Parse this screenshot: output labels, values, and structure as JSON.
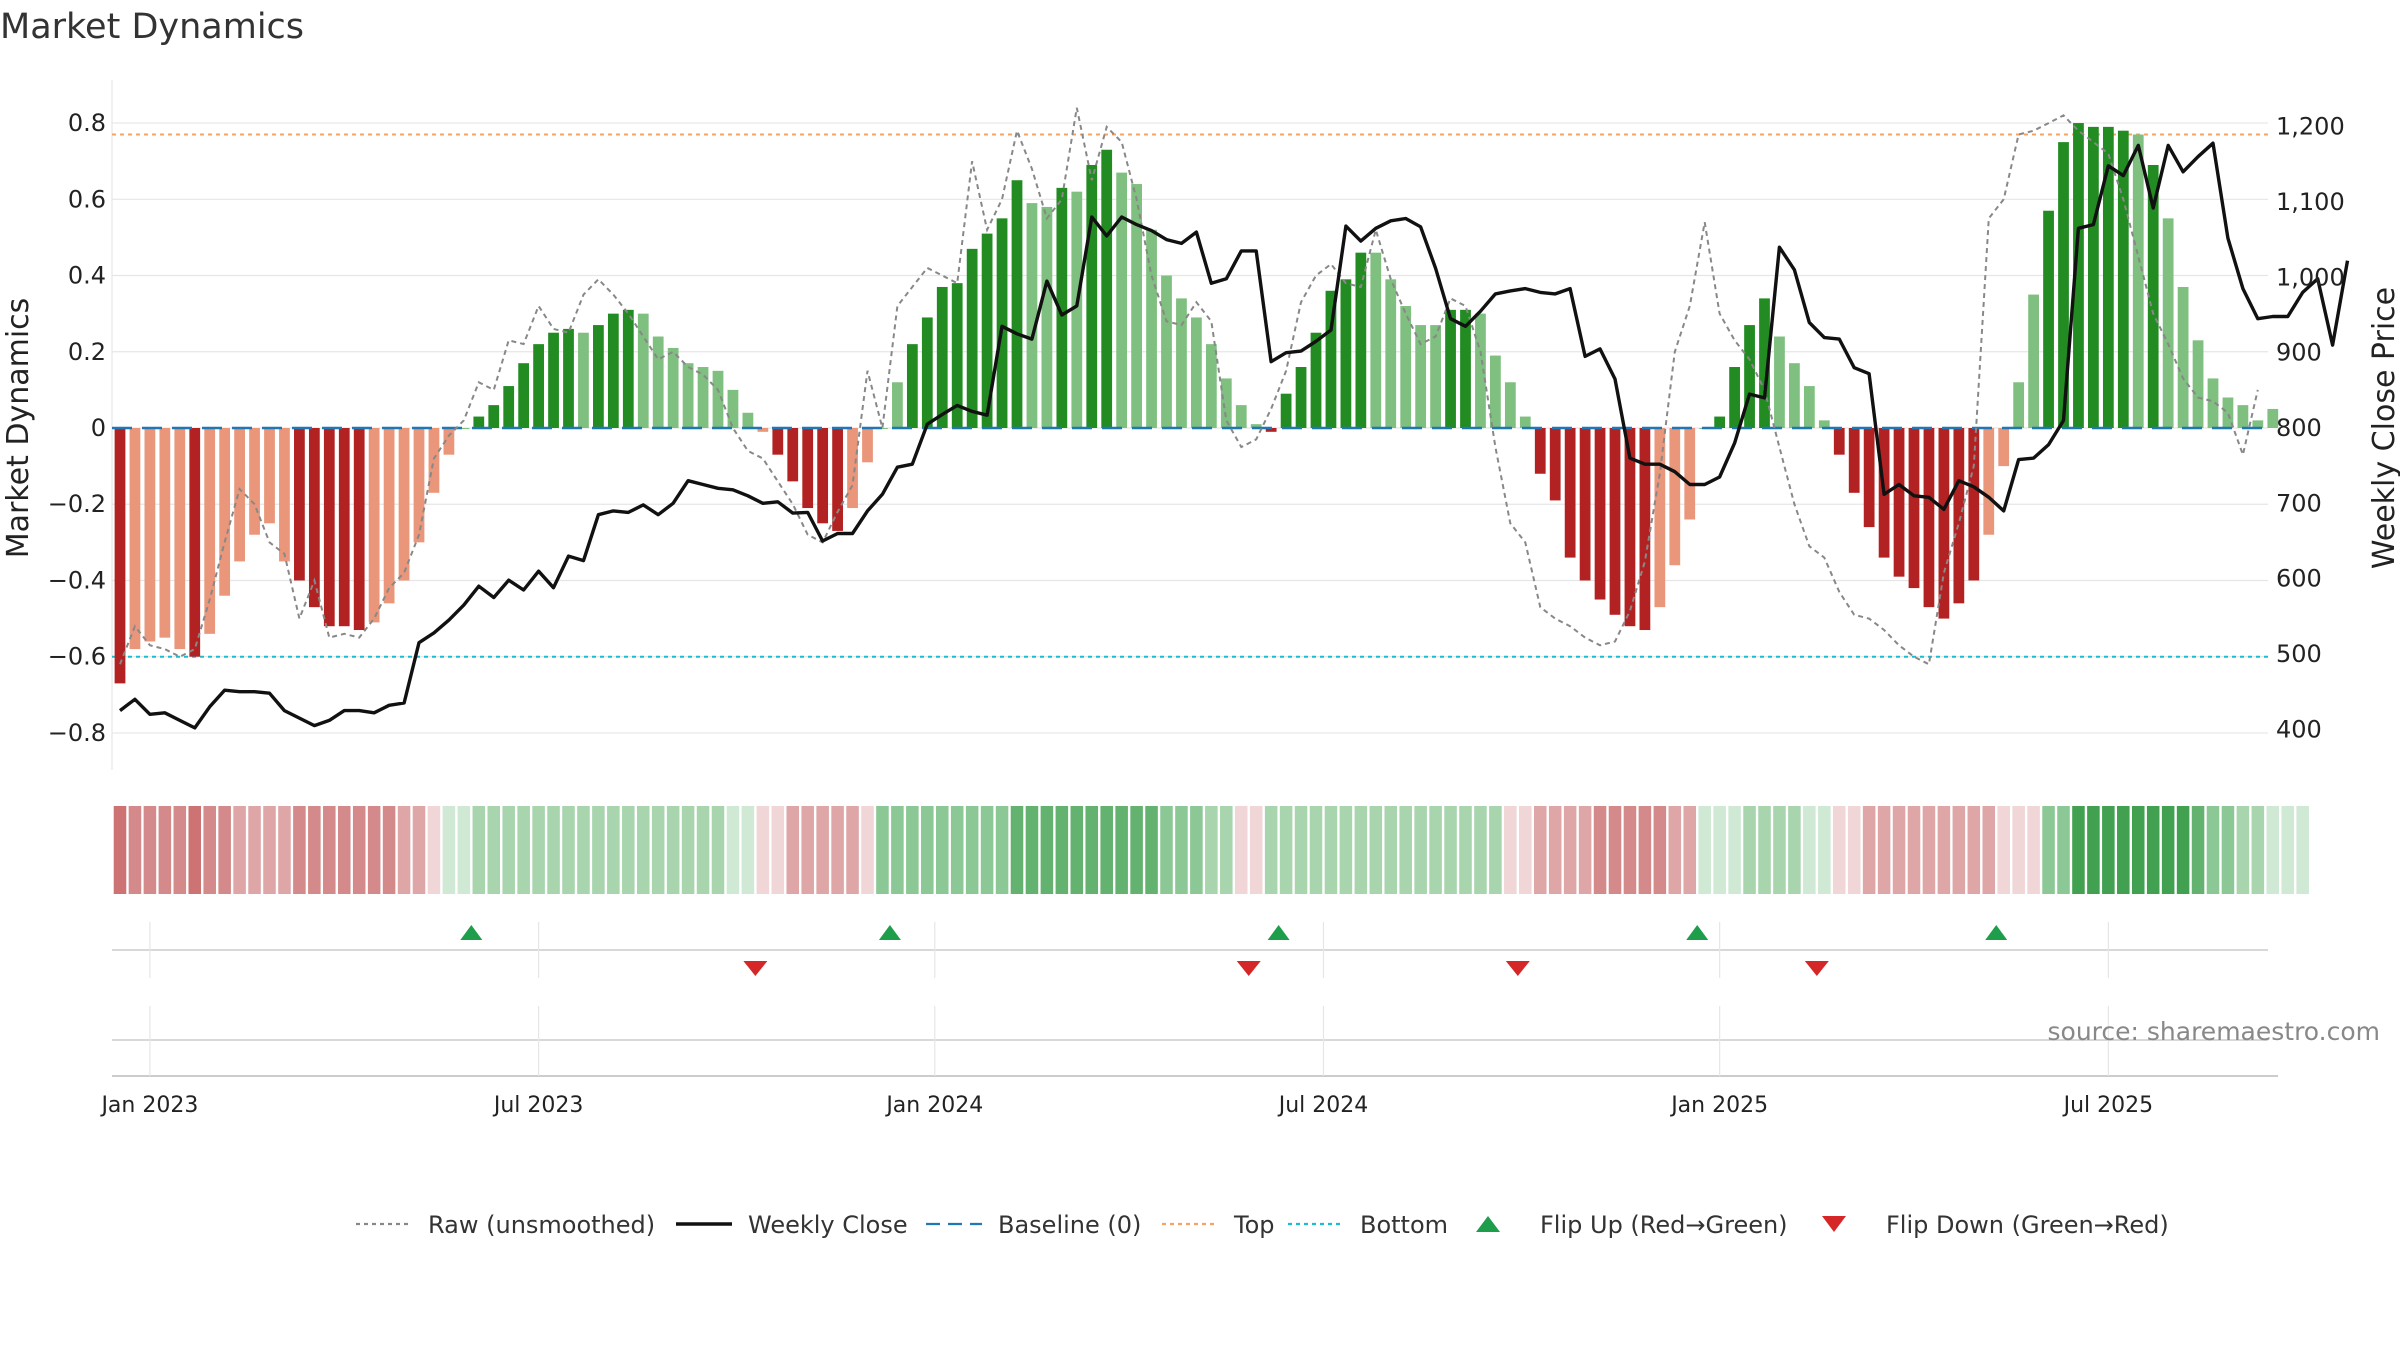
{
  "chart_data": {
    "type": "bar",
    "title": "Market Dynamics",
    "ylabel_left": "Market Dynamics",
    "ylabel_right": "Weekly Close Price",
    "source": "source: sharemaestro.com",
    "ylim_left": [
      -0.85,
      0.85
    ],
    "ylim_right": [
      370,
      1230
    ],
    "y_ticks_left": [
      "0.8",
      "0.6",
      "0.4",
      "0.2",
      "0",
      "−0.2",
      "−0.4",
      "−0.6",
      "−0.8"
    ],
    "y_ticks_left_values": [
      0.8,
      0.6,
      0.4,
      0.2,
      0,
      -0.2,
      -0.4,
      -0.6,
      -0.8
    ],
    "y_ticks_right": [
      "1,200",
      "1,100",
      "1,000",
      "900",
      "800",
      "700",
      "600",
      "500",
      "400"
    ],
    "y_ticks_right_values": [
      1200,
      1100,
      1000,
      900,
      800,
      700,
      600,
      500,
      400
    ],
    "top_line": 0.77,
    "bottom_line": -0.6,
    "baseline": 0,
    "date_ticks": [
      {
        "label": "Jan 2023",
        "week": 2
      },
      {
        "label": "Jul 2023",
        "week": 28
      },
      {
        "label": "Jan 2024",
        "week": 54.5
      },
      {
        "label": "Jul 2024",
        "week": 80.5
      },
      {
        "label": "Jan 2025",
        "week": 107
      },
      {
        "label": "Jul 2025",
        "week": 133
      }
    ],
    "weeks": 145,
    "bars": [
      -0.67,
      -0.58,
      -0.56,
      -0.55,
      -0.58,
      -0.6,
      -0.54,
      -0.44,
      -0.35,
      -0.28,
      -0.25,
      -0.35,
      -0.4,
      -0.47,
      -0.52,
      -0.52,
      -0.53,
      -0.51,
      -0.46,
      -0.4,
      -0.3,
      -0.17,
      -0.07,
      0.0,
      0.03,
      0.06,
      0.11,
      0.17,
      0.22,
      0.25,
      0.26,
      0.25,
      0.27,
      0.3,
      0.31,
      0.3,
      0.24,
      0.21,
      0.17,
      0.16,
      0.15,
      0.1,
      0.04,
      -0.01,
      -0.07,
      -0.14,
      -0.21,
      -0.25,
      -0.27,
      -0.21,
      -0.09,
      0.0,
      0.12,
      0.22,
      0.29,
      0.37,
      0.38,
      0.47,
      0.51,
      0.55,
      0.65,
      0.59,
      0.58,
      0.63,
      0.62,
      0.69,
      0.73,
      0.67,
      0.64,
      0.52,
      0.4,
      0.34,
      0.29,
      0.22,
      0.13,
      0.06,
      0.01,
      -0.01,
      0.09,
      0.16,
      0.25,
      0.36,
      0.39,
      0.46,
      0.46,
      0.39,
      0.32,
      0.27,
      0.27,
      0.31,
      0.31,
      0.3,
      0.19,
      0.12,
      0.03,
      -0.12,
      -0.19,
      -0.34,
      -0.4,
      -0.45,
      -0.49,
      -0.52,
      -0.53,
      -0.47,
      -0.36,
      -0.24,
      0.0,
      0.03,
      0.16,
      0.27,
      0.34,
      0.24,
      0.17,
      0.11,
      0.02,
      -0.07,
      -0.17,
      -0.26,
      -0.34,
      -0.39,
      -0.42,
      -0.47,
      -0.5,
      -0.46,
      -0.4,
      -0.28,
      -0.1,
      0.12,
      0.35,
      0.57,
      0.75,
      0.8,
      0.79,
      0.79,
      0.78,
      0.77,
      0.69,
      0.55,
      0.37,
      0.23,
      0.13,
      0.08,
      0.06,
      0.02,
      0.05
    ],
    "bar_state": [
      "s",
      "w",
      "w",
      "w",
      "w",
      "s",
      "w",
      "w",
      "w",
      "w",
      "w",
      "w",
      "s",
      "s",
      "s",
      "s",
      "s",
      "w",
      "w",
      "w",
      "w",
      "w",
      "w",
      "w",
      "s",
      "s",
      "s",
      "s",
      "s",
      "s",
      "s",
      "w",
      "s",
      "s",
      "s",
      "w",
      "w",
      "w",
      "w",
      "w",
      "w",
      "w",
      "w",
      "w",
      "s",
      "s",
      "s",
      "s",
      "s",
      "w",
      "w",
      "w",
      "w",
      "s",
      "s",
      "s",
      "s",
      "s",
      "s",
      "s",
      "s",
      "w",
      "w",
      "s",
      "w",
      "s",
      "s",
      "w",
      "w",
      "w",
      "w",
      "w",
      "w",
      "w",
      "w",
      "w",
      "w",
      "s",
      "s",
      "s",
      "s",
      "s",
      "s",
      "s",
      "w",
      "w",
      "w",
      "w",
      "w",
      "s",
      "s",
      "w",
      "w",
      "w",
      "w",
      "s",
      "s",
      "s",
      "s",
      "s",
      "s",
      "s",
      "s",
      "w",
      "w",
      "w",
      "w",
      "s",
      "s",
      "s",
      "s",
      "w",
      "w",
      "w",
      "w",
      "s",
      "s",
      "s",
      "s",
      "s",
      "s",
      "s",
      "s",
      "s",
      "s",
      "w",
      "w",
      "w",
      "w",
      "s",
      "s",
      "s",
      "s",
      "s",
      "s",
      "w",
      "s",
      "w",
      "w",
      "w",
      "w",
      "w",
      "w",
      "w",
      "w",
      "w",
      "s"
    ],
    "raw": [
      -0.62,
      -0.52,
      -0.57,
      -0.58,
      -0.6,
      -0.58,
      -0.45,
      -0.3,
      -0.16,
      -0.2,
      -0.3,
      -0.33,
      -0.5,
      -0.4,
      -0.55,
      -0.54,
      -0.55,
      -0.5,
      -0.42,
      -0.38,
      -0.28,
      -0.08,
      -0.02,
      0.02,
      0.12,
      0.1,
      0.23,
      0.22,
      0.32,
      0.26,
      0.25,
      0.35,
      0.39,
      0.35,
      0.3,
      0.24,
      0.18,
      0.2,
      0.16,
      0.14,
      0.1,
      0.0,
      -0.06,
      -0.08,
      -0.14,
      -0.2,
      -0.28,
      -0.3,
      -0.22,
      -0.15,
      0.15,
      0.0,
      0.32,
      0.37,
      0.42,
      0.4,
      0.38,
      0.7,
      0.52,
      0.6,
      0.78,
      0.68,
      0.55,
      0.6,
      0.84,
      0.65,
      0.79,
      0.75,
      0.6,
      0.4,
      0.28,
      0.27,
      0.33,
      0.28,
      0.02,
      -0.05,
      -0.03,
      0.05,
      0.15,
      0.33,
      0.4,
      0.43,
      0.38,
      0.37,
      0.52,
      0.39,
      0.3,
      0.22,
      0.24,
      0.34,
      0.32,
      0.2,
      -0.05,
      -0.25,
      -0.3,
      -0.47,
      -0.5,
      -0.52,
      -0.55,
      -0.57,
      -0.56,
      -0.48,
      -0.35,
      -0.12,
      0.2,
      0.32,
      0.54,
      0.3,
      0.23,
      0.18,
      0.1,
      -0.05,
      -0.2,
      -0.31,
      -0.34,
      -0.43,
      -0.49,
      -0.5,
      -0.53,
      -0.57,
      -0.6,
      -0.62,
      -0.38,
      -0.25,
      -0.1,
      0.55,
      0.6,
      0.77,
      0.78,
      0.8,
      0.82,
      0.78,
      0.75,
      0.72,
      0.6,
      0.45,
      0.3,
      0.22,
      0.13,
      0.08,
      0.07,
      0.04,
      -0.07,
      0.1
    ],
    "close": [
      425,
      440,
      420,
      422,
      412,
      402,
      430,
      452,
      450,
      450,
      448,
      425,
      415,
      405,
      412,
      425,
      425,
      422,
      432,
      435,
      515,
      528,
      545,
      565,
      590,
      575,
      598,
      585,
      610,
      588,
      630,
      624,
      685,
      690,
      688,
      698,
      685,
      700,
      730,
      725,
      720,
      718,
      710,
      700,
      702,
      687,
      688,
      650,
      660,
      660,
      690,
      712,
      748,
      752,
      805,
      818,
      830,
      822,
      817,
      935,
      925,
      918,
      995,
      950,
      962,
      1080,
      1055,
      1080,
      1070,
      1062,
      1050,
      1045,
      1060,
      992,
      998,
      1035,
      1035,
      888,
      900,
      902,
      915,
      930,
      1068,
      1048,
      1065,
      1075,
      1078,
      1067,
      1012,
      945,
      935,
      955,
      978,
      982,
      985,
      980,
      978,
      985,
      895,
      905,
      865,
      760,
      752,
      752,
      742,
      725,
      725,
      735,
      780,
      845,
      840,
      1040,
      1010,
      940,
      920,
      918,
      880,
      872,
      712,
      725,
      710,
      708,
      692,
      730,
      722,
      708,
      690,
      758,
      760,
      778,
      810,
      1065,
      1070,
      1148,
      1135,
      1175,
      1092,
      1175,
      1140,
      1160,
      1178,
      1052,
      985,
      945,
      948,
      948,
      980,
      998,
      910,
      1022
    ],
    "strip": [
      "r4",
      "r3",
      "r3",
      "r3",
      "r3",
      "r4",
      "r3",
      "r3",
      "r2",
      "r2",
      "r2",
      "r2",
      "r3",
      "r3",
      "r3",
      "r3",
      "r3",
      "r3",
      "r3",
      "r2",
      "r2",
      "r1",
      "g1",
      "g1",
      "g2",
      "g2",
      "g2",
      "g2",
      "g2",
      "g2",
      "g2",
      "g2",
      "g2",
      "g2",
      "g2",
      "g2",
      "g2",
      "g2",
      "g2",
      "g2",
      "g2",
      "g1",
      "g1",
      "r1",
      "r1",
      "r2",
      "r2",
      "r2",
      "r2",
      "r2",
      "r1",
      "g3",
      "g3",
      "g3",
      "g3",
      "g3",
      "g3",
      "g3",
      "g3",
      "g3",
      "g4",
      "g4",
      "g4",
      "g4",
      "g4",
      "g4",
      "g4",
      "g4",
      "g4",
      "g4",
      "g3",
      "g3",
      "g3",
      "g2",
      "g2",
      "r1",
      "r1",
      "g2",
      "g2",
      "g2",
      "g2",
      "g2",
      "g2",
      "g2",
      "g2",
      "g2",
      "g2",
      "g2",
      "g2",
      "g2",
      "g2",
      "g2",
      "g2",
      "r1",
      "r1",
      "r2",
      "r2",
      "r2",
      "r2",
      "r3",
      "r3",
      "r3",
      "r3",
      "r3",
      "r2",
      "r2",
      "g1",
      "g1",
      "g1",
      "g2",
      "g2",
      "g2",
      "g2",
      "g1",
      "g1",
      "r1",
      "r1",
      "r2",
      "r2",
      "r2",
      "r2",
      "r2",
      "r2",
      "r2",
      "r2",
      "r2",
      "r1",
      "r1",
      "r1",
      "g3",
      "g3",
      "g5",
      "g5",
      "g5",
      "g5",
      "g5",
      "g5",
      "g5",
      "g5",
      "g4",
      "g3",
      "g3",
      "g2",
      "g2",
      "g1",
      "g1",
      "g1"
    ],
    "flip_up_weeks": [
      23.5,
      51.5,
      77.5,
      105.5,
      125.5
    ],
    "flip_down_weeks": [
      42.5,
      75.5,
      93.5,
      113.5
    ],
    "colors": {
      "strong_green": "#228b22",
      "weak_green": "#7fbf7f",
      "strong_red": "#b22222",
      "weak_red": "#e9967a",
      "raw_line": "#888888",
      "close_line": "#111111",
      "baseline": "#1f77b4",
      "top": "#f4a460",
      "bottom": "#17becf",
      "flip_up": "#1e9e4a",
      "flip_down": "#d62728",
      "strip_r1": "#f0d6d6",
      "strip_r2": "#dea6a6",
      "strip_r3": "#d48a8a",
      "strip_r4": "#cd7373",
      "strip_g1": "#cfe9d4",
      "strip_g2": "#a8d5ae",
      "strip_g3": "#8cc895",
      "strip_g4": "#63b26f",
      "strip_g5": "#42a151"
    },
    "legend": [
      {
        "label": "Raw (unsmoothed)",
        "kind": "dotted-line",
        "color": "#888888"
      },
      {
        "label": "Weekly Close",
        "kind": "line",
        "color": "#111111"
      },
      {
        "label": "Baseline (0)",
        "kind": "dashed-line",
        "color": "#1f77b4"
      },
      {
        "label": "Top",
        "kind": "dotted-line",
        "color": "#f4a460"
      },
      {
        "label": "Bottom",
        "kind": "dotted-line",
        "color": "#17becf"
      },
      {
        "label": "Flip Up (Red→Green)",
        "kind": "up-triangle",
        "color": "#1e9e4a"
      },
      {
        "label": "Flip Down (Green→Red)",
        "kind": "down-triangle",
        "color": "#d62728"
      }
    ]
  }
}
